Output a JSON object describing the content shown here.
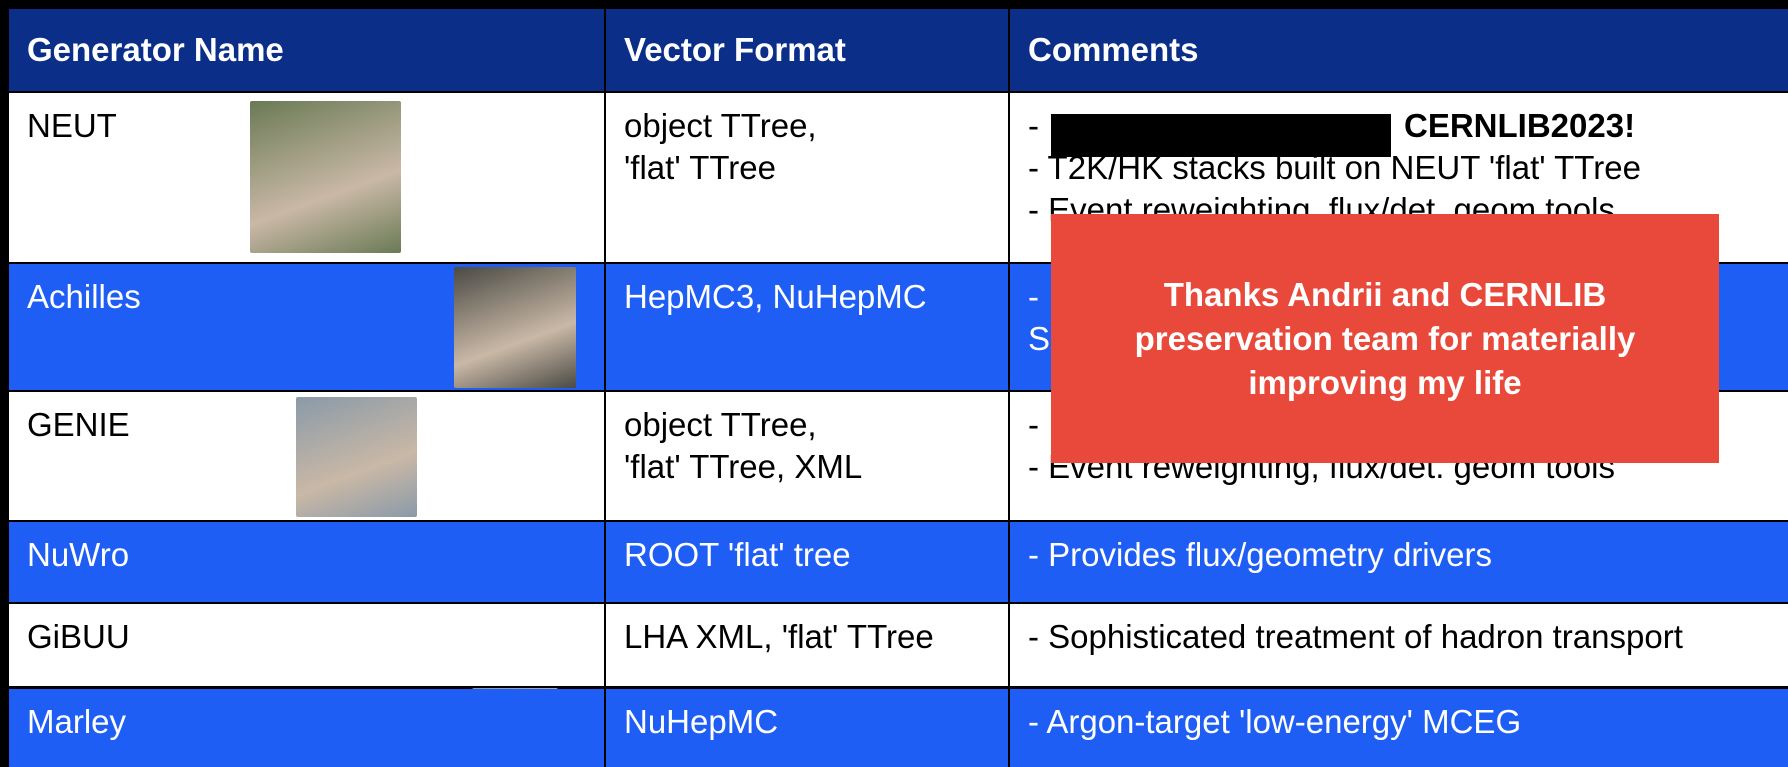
{
  "header": {
    "columns": [
      "Generator Name",
      "Vector Format",
      "Comments"
    ]
  },
  "table": {
    "rows": [
      {
        "name": "NEUT",
        "format": [
          "object TTree,",
          "'flat' TTree"
        ],
        "comments": [
          "-",
          "CERNLIB2023!",
          "- T2K/HK stacks built on NEUT 'flat' TTree",
          "- Event reweighting, flux/det. geom tools"
        ]
      },
      {
        "name": "Achilles",
        "format": [
          "HepMC3, NuHepMC"
        ],
        "comments": [
          "-",
          "S"
        ]
      },
      {
        "name": "GENIE",
        "format": [
          "object TTree,",
          "'flat' TTree,  XML"
        ],
        "comments": [
          "-",
          "- Event reweighting, flux/det. geom tools"
        ]
      },
      {
        "name": "NuWro",
        "format": [
          "ROOT 'flat' tree"
        ],
        "comments": [
          "- Provides flux/geometry drivers"
        ]
      },
      {
        "name": "GiBUU",
        "format": [
          "LHA XML, 'flat' TTree"
        ],
        "comments": [
          "- Sophisticated treatment of hadron transport"
        ]
      },
      {
        "name": "Marley",
        "format": [
          "NuHepMC"
        ],
        "comments": [
          "- Argon-target 'low-energy' MCEG"
        ]
      }
    ]
  },
  "overlay": {
    "lines": [
      "Thanks Andrii and CERNLIB",
      "preservation team for materially",
      "improving my life"
    ]
  }
}
